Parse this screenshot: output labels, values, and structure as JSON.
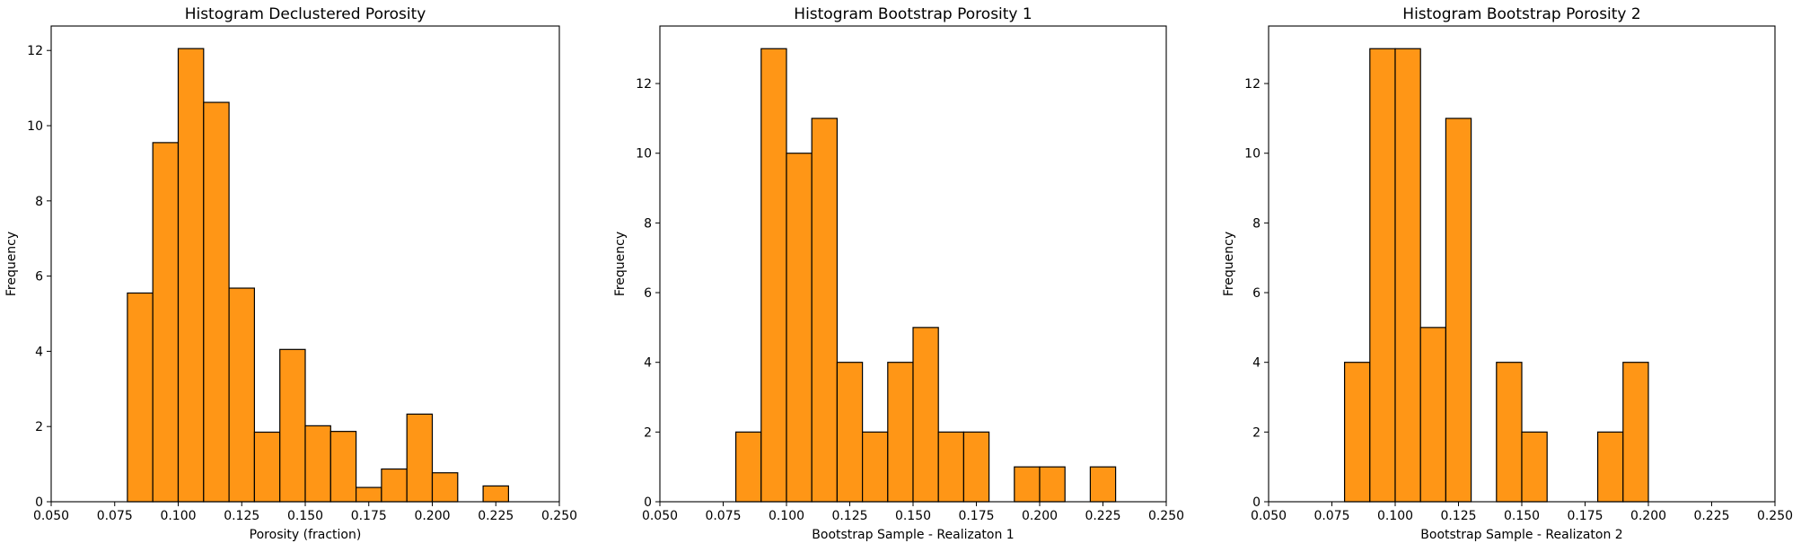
{
  "colors": {
    "bar_fill": "#ff9616",
    "bar_edge": "#000000",
    "axis": "#000000",
    "background": "#ffffff"
  },
  "chart_data": [
    {
      "type": "bar",
      "title": "Histogram Declustered Porosity",
      "xlabel": "Porosity (fraction)",
      "ylabel": "Frequency",
      "xlim": [
        0.05,
        0.25
      ],
      "ylim": [
        0,
        12.65
      ],
      "xticks": [
        "0.050",
        "0.075",
        "0.100",
        "0.125",
        "0.150",
        "0.175",
        "0.200",
        "0.225",
        "0.250"
      ],
      "yticks": [
        0,
        2,
        4,
        6,
        8,
        10,
        12
      ],
      "bin_edges": [
        0.08,
        0.09,
        0.1,
        0.11,
        0.12,
        0.13,
        0.14,
        0.15,
        0.16,
        0.17,
        0.18,
        0.19,
        0.2,
        0.21,
        0.22,
        0.23
      ],
      "values": [
        5.55,
        9.55,
        12.05,
        10.62,
        5.68,
        1.85,
        4.05,
        2.02,
        1.87,
        0.38,
        0.87,
        2.33,
        0.77,
        0,
        0.42
      ],
      "grid": false
    },
    {
      "type": "bar",
      "title": "Histogram Bootstrap Porosity 1",
      "xlabel": "Bootstrap Sample - Realizaton 1",
      "ylabel": "Frequency",
      "xlim": [
        0.05,
        0.25
      ],
      "ylim": [
        0,
        13.65
      ],
      "xticks": [
        "0.050",
        "0.075",
        "0.100",
        "0.125",
        "0.150",
        "0.175",
        "0.200",
        "0.225",
        "0.250"
      ],
      "yticks": [
        0,
        2,
        4,
        6,
        8,
        10,
        12
      ],
      "bin_edges": [
        0.08,
        0.09,
        0.1,
        0.11,
        0.12,
        0.13,
        0.14,
        0.15,
        0.16,
        0.17,
        0.18,
        0.19,
        0.2,
        0.21,
        0.22,
        0.23
      ],
      "values": [
        2,
        13,
        10,
        11,
        4,
        2,
        4,
        5,
        2,
        2,
        0,
        1,
        1,
        0,
        1
      ],
      "grid": false
    },
    {
      "type": "bar",
      "title": "Histogram Bootstrap Porosity 2",
      "xlabel": "Bootstrap Sample - Realizaton 2",
      "ylabel": "Frequency",
      "xlim": [
        0.05,
        0.25
      ],
      "ylim": [
        0,
        13.65
      ],
      "xticks": [
        "0.050",
        "0.075",
        "0.100",
        "0.125",
        "0.150",
        "0.175",
        "0.200",
        "0.225",
        "0.250"
      ],
      "yticks": [
        0,
        2,
        4,
        6,
        8,
        10,
        12
      ],
      "bin_edges": [
        0.08,
        0.09,
        0.1,
        0.11,
        0.12,
        0.13,
        0.14,
        0.15,
        0.16,
        0.17,
        0.18,
        0.19,
        0.2
      ],
      "values": [
        4,
        13,
        13,
        5,
        11,
        0,
        4,
        2,
        0,
        0,
        2,
        4
      ],
      "grid": false
    }
  ]
}
